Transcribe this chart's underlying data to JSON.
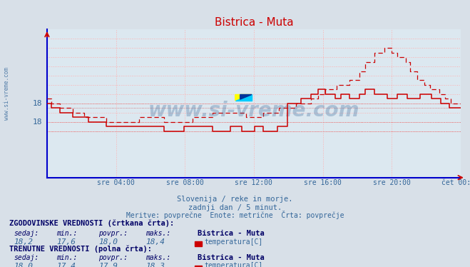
{
  "title": "Bistrica - Muta",
  "subtitle1": "Slovenija / reke in morje.",
  "subtitle2": "zadnji dan / 5 minut.",
  "subtitle3": "Meritve: povprečne  Enote: metrične  Črta: povprečje",
  "xlabel_ticks": [
    "sre 04:00",
    "sre 08:00",
    "sre 12:00",
    "sre 16:00",
    "sre 20:00",
    "čet 00:00"
  ],
  "hist_label": "ZGODOVINSKE VREDNOSTI (črtkana črta):",
  "curr_label": "TRENUTNE VREDNOSTI (polna črta):",
  "hist_sedaj": "18,2",
  "hist_min": "17,6",
  "hist_povpr": "18,0",
  "hist_maks": "18,4",
  "curr_sedaj": "18,0",
  "curr_min": "17,4",
  "curr_povpr": "17,9",
  "curr_maks": "18,3",
  "station": "Bistrica - Muta",
  "variable": "temperatura[C]",
  "bg_color": "#d8e0e8",
  "plot_bg_color": "#dce8f0",
  "grid_color": "#ffb0b0",
  "axis_color": "#0000cc",
  "title_color": "#cc0000",
  "text_color": "#336699",
  "label_color": "#000066",
  "line_color": "#cc0000",
  "watermark_color": "#336699",
  "ytick_positions": [
    17.4,
    17.6,
    17.8,
    18.0,
    18.2,
    18.4,
    18.6,
    18.8,
    19.0,
    19.2,
    19.4
  ],
  "ytick_labels_show": {
    "17.6": "18",
    "18.0": "18"
  },
  "ylim_min": 16.4,
  "ylim_max": 19.6,
  "n_points": 288,
  "solid_avg": 17.9,
  "dashed_avg": 18.0,
  "solid_min_line": 17.4,
  "solid_max_line": 18.3,
  "dashed_min_line": 17.6,
  "dashed_max_line": 18.4
}
